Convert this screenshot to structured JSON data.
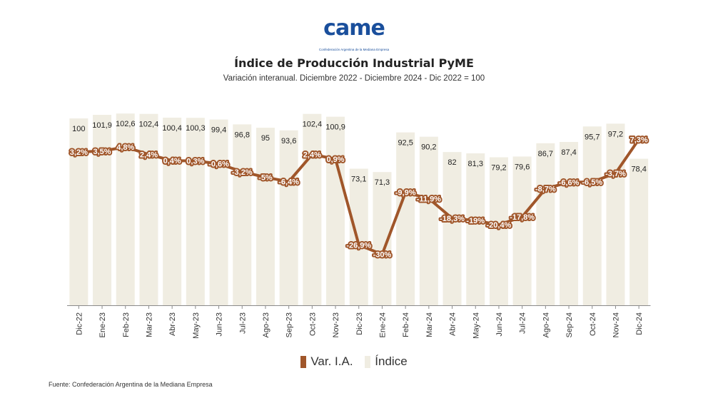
{
  "logo": {
    "text": "came",
    "subtext": "Confederación Argentina de la Mediana Empresa"
  },
  "title": "Índice de Producción Industrial PyME",
  "subtitle": "Variación interanual. Diciembre 2022 - Diciembre 2024 - Dic 2022 = 100",
  "source": "Fuente: Confederación Argentina de la Mediana Empresa",
  "legend": {
    "line_label": "Var. I.A.",
    "bar_label": "Índice"
  },
  "colors": {
    "bar": "#f0ede2",
    "line": "#a0562a",
    "line_label_bg": "#a0562a",
    "line_label_text": "#ffffff"
  },
  "chart_data": {
    "type": "bar",
    "title": "Índice de Producción Industrial PyME",
    "categories": [
      "Dic-22",
      "Ene-23",
      "Feb-23",
      "Mar-23",
      "Abr-23",
      "May-23",
      "Jun-23",
      "Jul-23",
      "Ago-23",
      "Sep-23",
      "Oct-23",
      "Nov-23",
      "Dic-23",
      "Ene-24",
      "Feb-24",
      "Mar-24",
      "Abr-24",
      "May-24",
      "Jun-24",
      "Jul-24",
      "Ago-24",
      "Sep-24",
      "Oct-24",
      "Nov-24",
      "Dic-24"
    ],
    "series": [
      {
        "name": "Índice",
        "type": "bar",
        "values": [
          100,
          101.9,
          102.6,
          102.4,
          100.4,
          100.3,
          99.4,
          96.8,
          95,
          93.6,
          102.4,
          100.9,
          73.1,
          71.3,
          92.5,
          90.2,
          82,
          81.3,
          79.2,
          79.6,
          86.7,
          87.4,
          95.7,
          97.2,
          78.4
        ],
        "labels": [
          "100",
          "101,9",
          "102,6",
          "102,4",
          "100,4",
          "100,3",
          "99,4",
          "96,8",
          "95",
          "93,6",
          "102,4",
          "100,9",
          "73,1",
          "71,3",
          "92,5",
          "90,2",
          "82",
          "81,3",
          "79,2",
          "79,6",
          "86,7",
          "87,4",
          "95,7",
          "97,2",
          "78,4"
        ]
      },
      {
        "name": "Var. I.A.",
        "type": "line",
        "values": [
          3.2,
          3.5,
          4.8,
          2.4,
          0.4,
          0.3,
          -0.6,
          -3.2,
          -5,
          -6.4,
          2.4,
          0.9,
          -26.9,
          -30,
          -9.9,
          -11.9,
          -18.3,
          -19,
          -20.4,
          -17.8,
          -8.7,
          -6.6,
          -6.5,
          -3.7,
          7.3
        ],
        "labels": [
          "3,2%",
          "3,5%",
          "4,8%",
          "2,4%",
          "0,4%",
          "0,3%",
          "-0,6%",
          "-3,2%",
          "-5%",
          "-6,4%",
          "2,4%",
          "0,9%",
          "-26,9%",
          "-30%",
          "-9,9%",
          "-11,9%",
          "-18,3%",
          "-19%",
          "-20,4%",
          "-17,8%",
          "-8,7%",
          "-6,6%",
          "-6,5%",
          "-3,7%",
          "7,3%"
        ]
      }
    ],
    "index_axis_range": [
      0,
      110
    ],
    "variation_axis_range": [
      -40,
      15
    ],
    "grid": false,
    "legend_position": "bottom"
  }
}
